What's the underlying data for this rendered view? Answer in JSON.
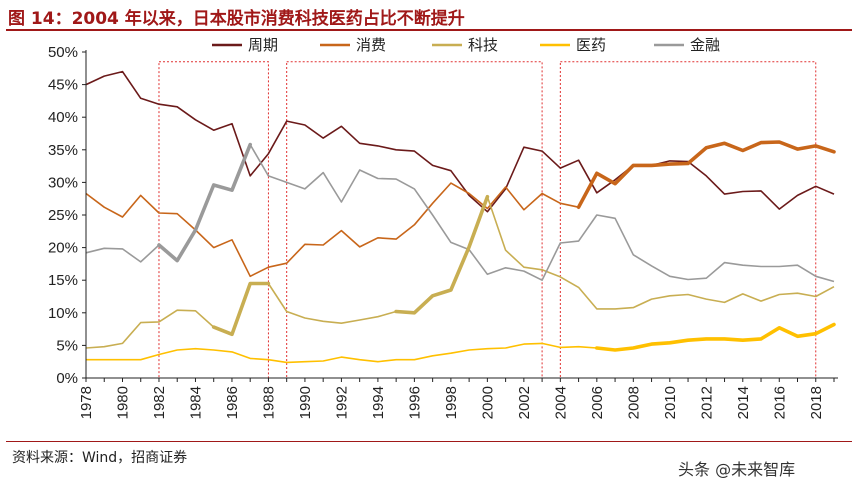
{
  "header": {
    "title": "图 14：2004 年以来，日本股市消费科技医药占比不断提升"
  },
  "footer": {
    "source": "资料来源：Wind，招商证券",
    "watermark": "头条 @未来智库"
  },
  "chart_data": {
    "type": "line",
    "title": "图 14：2004 年以来，日本股市消费科技医药占比不断提升",
    "xlabel": "",
    "ylabel": "",
    "x": [
      1978,
      1979,
      1980,
      1981,
      1982,
      1983,
      1984,
      1985,
      1986,
      1987,
      1988,
      1989,
      1990,
      1991,
      1992,
      1993,
      1994,
      1995,
      1996,
      1997,
      1998,
      1999,
      2000,
      2001,
      2002,
      2003,
      2004,
      2005,
      2006,
      2007,
      2008,
      2009,
      2010,
      2011,
      2012,
      2013,
      2014,
      2015,
      2016,
      2017,
      2018,
      2019
    ],
    "xticks": [
      "1978",
      "1980",
      "1982",
      "1984",
      "1986",
      "1988",
      "1990",
      "1992",
      "1994",
      "1996",
      "1998",
      "2000",
      "2002",
      "2004",
      "2006",
      "2008",
      "2010",
      "2012",
      "2014",
      "2016",
      "2018"
    ],
    "ylim": [
      0,
      50
    ],
    "yticks": [
      "0%",
      "5%",
      "10%",
      "15%",
      "20%",
      "25%",
      "30%",
      "35%",
      "40%",
      "45%",
      "50%"
    ],
    "legend_position": "top",
    "series": [
      {
        "name": "周期",
        "color": "#6b1a1a",
        "values": [
          45.0,
          46.3,
          47.0,
          42.9,
          42.0,
          41.6,
          39.6,
          38.0,
          39.0,
          31.0,
          34.4,
          39.4,
          38.8,
          36.8,
          38.6,
          36.0,
          35.6,
          35.0,
          34.8,
          32.6,
          31.8,
          28.0,
          25.5,
          29.0,
          35.4,
          34.8,
          32.2,
          33.4,
          28.4,
          30.4,
          32.6,
          32.6,
          33.3,
          33.2,
          31.0,
          28.2,
          28.6,
          28.7,
          25.9,
          28.0,
          29.4,
          28.2
        ]
      },
      {
        "name": "消费",
        "color": "#c8661a",
        "values": [
          28.3,
          26.2,
          24.7,
          28.0,
          25.3,
          25.2,
          22.7,
          20.0,
          21.2,
          15.6,
          17.0,
          17.6,
          20.5,
          20.4,
          22.6,
          20.1,
          21.5,
          21.3,
          23.5,
          26.8,
          29.9,
          28.3,
          26.0,
          29.3,
          25.8,
          28.3,
          26.8,
          26.2,
          31.4,
          29.8,
          32.6,
          32.6,
          32.8,
          32.9,
          35.3,
          36.0,
          34.9,
          36.1,
          36.2,
          35.1,
          35.6,
          34.7
        ]
      },
      {
        "name": "科技",
        "color": "#c8ae52",
        "values": [
          4.6,
          4.8,
          5.3,
          8.5,
          8.6,
          10.4,
          10.3,
          7.8,
          6.7,
          14.5,
          14.5,
          10.2,
          9.2,
          8.7,
          8.4,
          8.9,
          9.4,
          10.2,
          10.0,
          12.6,
          13.5,
          20.1,
          27.8,
          19.6,
          17.0,
          16.6,
          15.5,
          13.9,
          10.6,
          10.6,
          10.8,
          12.1,
          12.6,
          12.8,
          12.1,
          11.6,
          12.9,
          11.8,
          12.8,
          13.0,
          12.5,
          14.0
        ]
      },
      {
        "name": "医药",
        "color": "#ffc000",
        "values": [
          2.8,
          2.8,
          2.8,
          2.8,
          3.6,
          4.3,
          4.5,
          4.3,
          4.0,
          3.0,
          2.8,
          2.4,
          2.5,
          2.6,
          3.2,
          2.8,
          2.5,
          2.8,
          2.8,
          3.4,
          3.8,
          4.3,
          4.5,
          4.6,
          5.2,
          5.3,
          4.7,
          4.8,
          4.6,
          4.3,
          4.6,
          5.2,
          5.4,
          5.8,
          6.0,
          6.0,
          5.8,
          6.0,
          7.7,
          6.4,
          6.8,
          8.2
        ]
      },
      {
        "name": "金融",
        "color": "#9a9a9a",
        "values": [
          19.2,
          19.9,
          19.8,
          17.8,
          20.4,
          18.0,
          22.7,
          29.6,
          28.8,
          35.8,
          31.0,
          30.0,
          29.0,
          31.5,
          27.0,
          31.9,
          30.6,
          30.5,
          29.0,
          25.0,
          20.8,
          19.7,
          15.9,
          16.9,
          16.4,
          15.0,
          20.7,
          21.0,
          25.0,
          24.5,
          18.9,
          17.2,
          15.6,
          15.1,
          15.3,
          17.7,
          17.3,
          17.1,
          17.1,
          17.3,
          15.6,
          14.8
        ]
      }
    ],
    "highlighted_periods": [
      [
        1982,
        1988
      ],
      [
        1989,
        2003
      ],
      [
        2004,
        2018
      ]
    ]
  }
}
